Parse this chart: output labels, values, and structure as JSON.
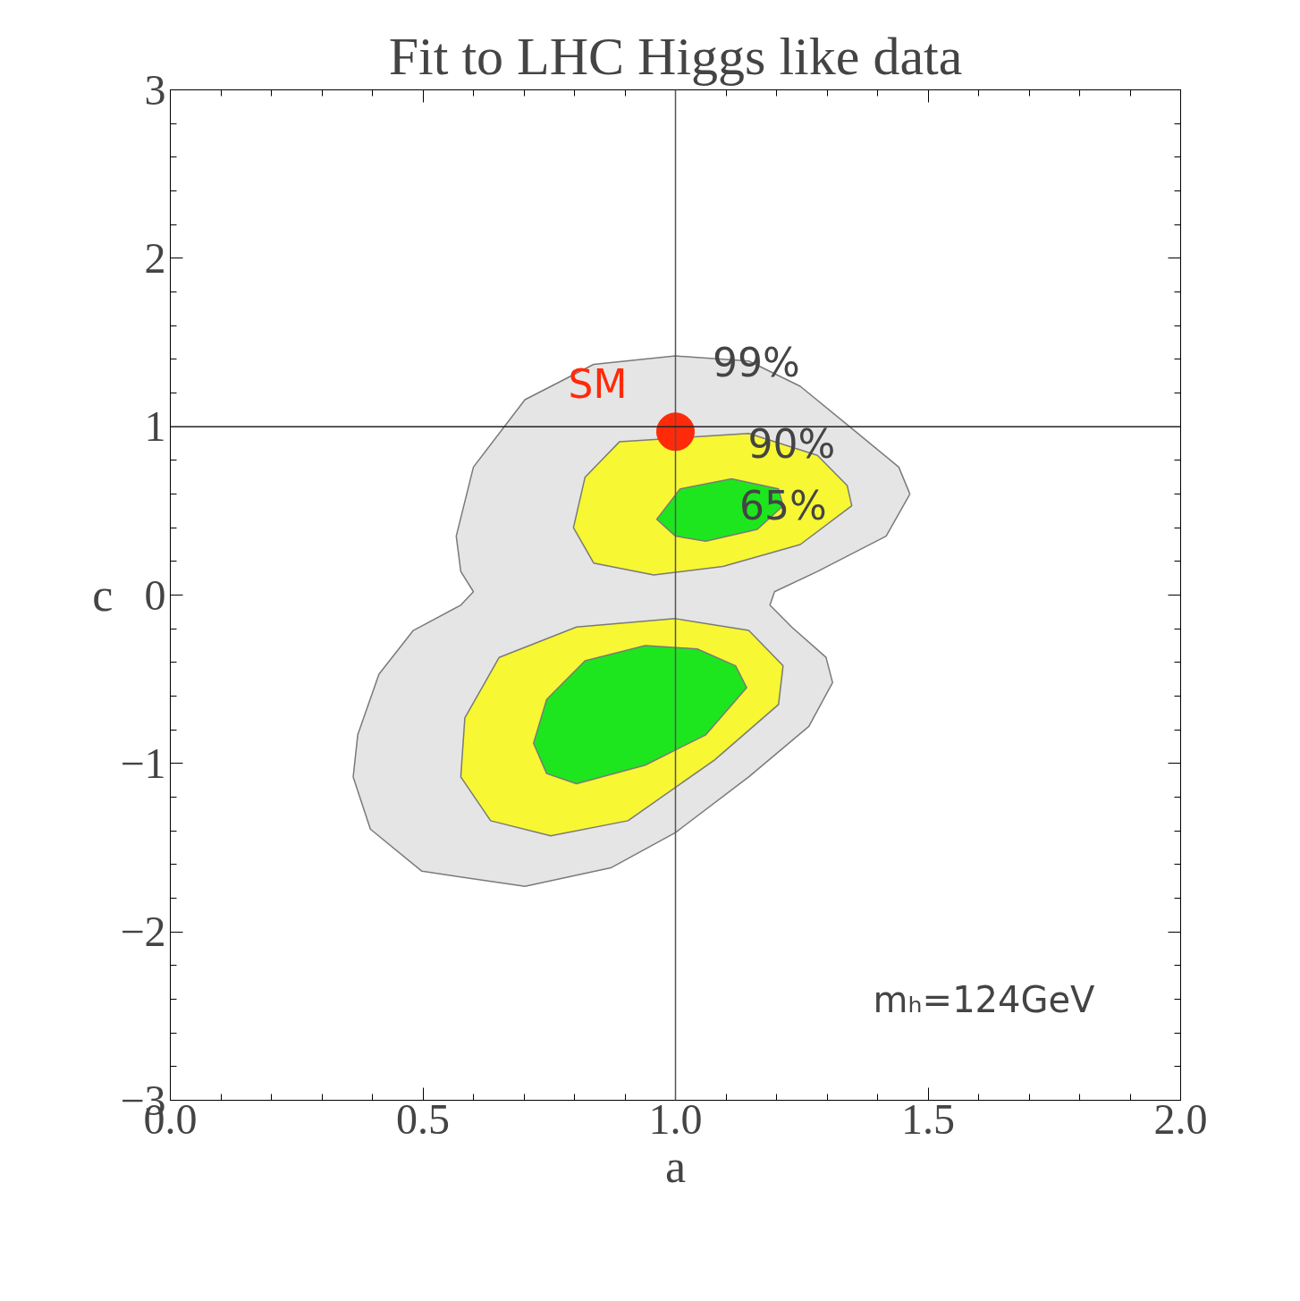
{
  "chart_data": {
    "type": "area",
    "title": "Fit to LHC Higgs like data",
    "xlabel": "a",
    "ylabel": "c",
    "xlim": [
      0,
      2
    ],
    "ylim": [
      -3,
      3
    ],
    "xticks": [
      {
        "value": 0,
        "label": "0.0"
      },
      {
        "value": 0.5,
        "label": "0.5"
      },
      {
        "value": 1,
        "label": "1.0"
      },
      {
        "value": 1.5,
        "label": "1.5"
      },
      {
        "value": 2,
        "label": "2.0"
      }
    ],
    "yticks": [
      {
        "value": -3,
        "label": "−3"
      },
      {
        "value": -2,
        "label": "−2"
      },
      {
        "value": -1,
        "label": "−1"
      },
      0,
      1,
      2,
      3
    ],
    "grid": false,
    "series": [
      {
        "color": "#e5e5e5",
        "x": [
          1.0,
          0.838,
          0.702,
          0.6,
          0.566,
          0.575,
          0.6,
          0.575,
          0.481,
          0.413,
          0.371,
          0.362,
          0.396,
          0.498,
          0.702,
          0.872,
          1.0,
          1.145,
          1.264,
          1.311,
          1.298,
          1.23,
          1.187,
          1.196,
          1.281,
          1.417,
          1.464,
          1.442,
          1.349,
          1.247,
          1.145
        ],
        "values": [
          1.42,
          1.37,
          1.16,
          0.76,
          0.35,
          0.14,
          0.02,
          -0.06,
          -0.21,
          -0.47,
          -0.83,
          -1.08,
          -1.39,
          -1.64,
          -1.73,
          -1.62,
          -1.41,
          -1.08,
          -0.78,
          -0.52,
          -0.37,
          -0.19,
          -0.06,
          0.02,
          0.14,
          0.35,
          0.6,
          0.76,
          0.99,
          1.24,
          1.39
        ]
      },
      {
        "color": "#f7f733",
        "x": [
          0.889,
          0.821,
          0.798,
          0.838,
          0.957,
          1.094,
          1.247,
          1.349,
          1.34,
          1.281,
          1.145,
          null,
          1.0,
          0.804,
          0.651,
          0.583,
          0.575,
          0.634,
          0.753,
          0.906,
          1.077,
          1.204,
          1.213,
          1.145
        ],
        "values": [
          0.91,
          0.7,
          0.4,
          0.19,
          0.12,
          0.17,
          0.3,
          0.53,
          0.65,
          0.83,
          0.96,
          null,
          -0.14,
          -0.19,
          -0.37,
          -0.73,
          -1.08,
          -1.34,
          -1.43,
          -1.34,
          -0.98,
          -0.65,
          -0.42,
          -0.21
        ]
      },
      {
        "color": "#1ee61e",
        "x": [
          1.111,
          1.009,
          0.963,
          1.0,
          1.06,
          1.162,
          1.213,
          1.204,
          null,
          0.94,
          0.821,
          0.745,
          0.719,
          0.745,
          0.804,
          0.94,
          1.06,
          1.141,
          1.119,
          1.043
        ],
        "values": [
          0.69,
          0.63,
          0.45,
          0.35,
          0.32,
          0.39,
          0.53,
          0.63,
          null,
          -0.3,
          -0.39,
          -0.62,
          -0.88,
          -1.06,
          -1.12,
          -1.01,
          -0.83,
          -0.55,
          -0.42,
          -0.32
        ]
      },
      {
        "type": "scatter",
        "name": "SM",
        "color": "#ff2a0a",
        "marker": "circle",
        "x": [
          1.0
        ],
        "values": [
          0.97
        ]
      }
    ],
    "ref_lines": [
      {
        "axis": "x",
        "value": 1,
        "color": "#555555"
      },
      {
        "axis": "y",
        "value": 1,
        "color": "#222222"
      }
    ],
    "annotations": [
      {
        "text": "99%",
        "x": 1.16,
        "y": 1.38
      },
      {
        "text": "90%",
        "x": 1.23,
        "y": 0.9
      },
      {
        "text": "65%",
        "x": 1.213,
        "y": 0.53
      },
      "mₕ=124GeV"
    ]
  }
}
